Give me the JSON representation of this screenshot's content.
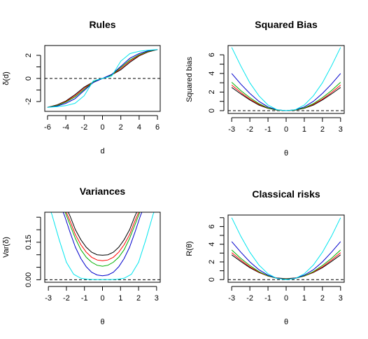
{
  "chart_data": [
    {
      "id": "rules",
      "type": "line",
      "title": "Rules",
      "xlabel": "d",
      "ylabel": "δ(d)",
      "xlim": [
        -6.3,
        6.3
      ],
      "ylim": [
        -2.85,
        2.85
      ],
      "xticks": [
        -6,
        -4,
        -2,
        0,
        2,
        4,
        6
      ],
      "xtick_labels": [
        "-6",
        "-4",
        "-2",
        "0",
        "2",
        "4",
        "6"
      ],
      "yticks": [
        -2,
        0,
        2
      ],
      "ytick_labels": [
        "-2",
        "0",
        "2"
      ],
      "yminor": [
        -1,
        1
      ],
      "hline": 0,
      "series": [
        {
          "color": "#000000",
          "x": [
            -6,
            -5,
            -4,
            -3,
            -2,
            -1,
            0,
            1,
            2,
            3,
            4,
            5,
            6
          ],
          "y": [
            -2.5,
            -2.3,
            -1.95,
            -1.4,
            -0.75,
            -0.3,
            0,
            0.3,
            0.75,
            1.4,
            1.95,
            2.3,
            2.5
          ]
        },
        {
          "color": "#ff0000",
          "x": [
            -6,
            -5,
            -4,
            -3,
            -2,
            -1,
            0,
            1,
            2,
            3,
            4,
            5,
            6
          ],
          "y": [
            -2.5,
            -2.33,
            -2.0,
            -1.5,
            -0.85,
            -0.3,
            0,
            0.3,
            0.85,
            1.5,
            2.0,
            2.33,
            2.5
          ]
        },
        {
          "color": "#00b000",
          "x": [
            -6,
            -5,
            -4,
            -3,
            -2,
            -1,
            0,
            1,
            2,
            3,
            4,
            5,
            6
          ],
          "y": [
            -2.5,
            -2.35,
            -2.05,
            -1.6,
            -0.95,
            -0.3,
            0,
            0.3,
            0.95,
            1.6,
            2.05,
            2.35,
            2.5
          ]
        },
        {
          "color": "#0000cc",
          "x": [
            -6,
            -5,
            -4,
            -3,
            -2,
            -1,
            0,
            1,
            2,
            3,
            4,
            5,
            6
          ],
          "y": [
            -2.5,
            -2.4,
            -2.15,
            -1.75,
            -1.05,
            -0.35,
            0,
            0.35,
            1.05,
            1.75,
            2.15,
            2.4,
            2.5
          ]
        },
        {
          "color": "#00e5ee",
          "x": [
            -6,
            -5,
            -4,
            -3,
            -2,
            -1,
            0,
            1,
            2,
            3,
            4,
            5,
            6
          ],
          "y": [
            -2.5,
            -2.45,
            -2.35,
            -2.15,
            -1.5,
            -0.2,
            0,
            0.2,
            1.5,
            2.15,
            2.35,
            2.45,
            2.5
          ]
        }
      ]
    },
    {
      "id": "squared-bias",
      "type": "line",
      "title": "Squared Bias",
      "xlabel": "θ",
      "ylabel": "Squared bias",
      "xlim": [
        -3.2,
        3.2
      ],
      "ylim": [
        -0.3,
        7.0
      ],
      "xticks": [
        -3,
        -2,
        -1,
        0,
        1,
        2,
        3
      ],
      "xtick_labels": [
        "-3",
        "-2",
        "-1",
        "0",
        "1",
        "2",
        "3"
      ],
      "yticks": [
        0,
        2,
        4,
        6
      ],
      "ytick_labels": [
        "0",
        "2",
        "4",
        "6"
      ],
      "yminor": [
        1,
        3,
        5
      ],
      "hline": 0,
      "series": [
        {
          "color": "#000000",
          "x": [
            -3,
            -2.5,
            -2,
            -1.5,
            -1,
            -0.5,
            0,
            0.5,
            1,
            1.5,
            2,
            2.5,
            3
          ],
          "y": [
            2.5,
            1.8,
            1.15,
            0.6,
            0.25,
            0.05,
            0,
            0.05,
            0.25,
            0.6,
            1.15,
            1.8,
            2.5
          ]
        },
        {
          "color": "#ff0000",
          "x": [
            -3,
            -2.5,
            -2,
            -1.5,
            -1,
            -0.5,
            0,
            0.5,
            1,
            1.5,
            2,
            2.5,
            3
          ],
          "y": [
            2.75,
            1.95,
            1.25,
            0.68,
            0.28,
            0.06,
            0,
            0.06,
            0.28,
            0.68,
            1.25,
            1.95,
            2.75
          ]
        },
        {
          "color": "#00b000",
          "x": [
            -3,
            -2.5,
            -2,
            -1.5,
            -1,
            -0.5,
            0,
            0.5,
            1,
            1.5,
            2,
            2.5,
            3
          ],
          "y": [
            3.05,
            2.15,
            1.4,
            0.75,
            0.3,
            0.07,
            0,
            0.07,
            0.3,
            0.75,
            1.4,
            2.15,
            3.05
          ]
        },
        {
          "color": "#0000cc",
          "x": [
            -3,
            -2.5,
            -2,
            -1.5,
            -1,
            -0.5,
            0,
            0.5,
            1,
            1.5,
            2,
            2.5,
            3
          ],
          "y": [
            4.0,
            2.85,
            1.85,
            1.0,
            0.4,
            0.09,
            0,
            0.09,
            0.4,
            1.0,
            1.85,
            2.85,
            4.0
          ]
        },
        {
          "color": "#00e5ee",
          "x": [
            -3,
            -2.5,
            -2,
            -1.5,
            -1,
            -0.5,
            0,
            0.5,
            1,
            1.5,
            2,
            2.5,
            3
          ],
          "y": [
            6.8,
            4.8,
            3.0,
            1.6,
            0.6,
            0.1,
            0,
            0.1,
            0.6,
            1.6,
            3.0,
            4.8,
            6.8
          ]
        }
      ]
    },
    {
      "id": "variances",
      "type": "line",
      "title": "Variances",
      "xlabel": "θ",
      "ylabel": "Var(δ)",
      "xlim": [
        -3.2,
        3.2
      ],
      "ylim": [
        -0.01,
        0.27
      ],
      "xticks": [
        -3,
        -2,
        -1,
        0,
        1,
        2,
        3
      ],
      "xtick_labels": [
        "-3",
        "-2",
        "-1",
        "0",
        "1",
        "2",
        "3"
      ],
      "yticks": [
        0,
        0.15
      ],
      "ytick_labels": [
        "0.00",
        "0.15"
      ],
      "yminor": [
        0.05,
        0.1,
        0.2,
        0.25
      ],
      "hline": 0,
      "series": [
        {
          "color": "#000000",
          "x": [
            -2.1,
            -1.8,
            -1.5,
            -1.2,
            -0.9,
            -0.6,
            -0.3,
            0,
            0.3,
            0.6,
            0.9,
            1.2,
            1.5,
            1.8,
            2.1
          ],
          "y": [
            0.3,
            0.255,
            0.2,
            0.16,
            0.13,
            0.11,
            0.1,
            0.098,
            0.1,
            0.11,
            0.13,
            0.16,
            0.2,
            0.255,
            0.3
          ]
        },
        {
          "color": "#ff0000",
          "x": [
            -2.1,
            -1.8,
            -1.5,
            -1.2,
            -0.9,
            -0.6,
            -0.3,
            0,
            0.3,
            0.6,
            0.9,
            1.2,
            1.5,
            1.8,
            2.1
          ],
          "y": [
            0.285,
            0.235,
            0.18,
            0.14,
            0.11,
            0.09,
            0.079,
            0.076,
            0.079,
            0.09,
            0.11,
            0.14,
            0.18,
            0.235,
            0.285
          ]
        },
        {
          "color": "#00b000",
          "x": [
            -2.1,
            -1.8,
            -1.5,
            -1.2,
            -0.9,
            -0.6,
            -0.3,
            0,
            0.3,
            0.6,
            0.9,
            1.2,
            1.5,
            1.8,
            2.1
          ],
          "y": [
            0.275,
            0.22,
            0.165,
            0.12,
            0.09,
            0.07,
            0.058,
            0.054,
            0.058,
            0.07,
            0.09,
            0.12,
            0.165,
            0.22,
            0.275
          ]
        },
        {
          "color": "#0000cc",
          "x": [
            -2.4,
            -2.1,
            -1.8,
            -1.5,
            -1.2,
            -0.9,
            -0.6,
            -0.3,
            0,
            0.3,
            0.6,
            0.9,
            1.2,
            1.5,
            1.8,
            2.1,
            2.4
          ],
          "y": [
            0.31,
            0.255,
            0.19,
            0.13,
            0.085,
            0.052,
            0.03,
            0.019,
            0.016,
            0.019,
            0.03,
            0.052,
            0.085,
            0.13,
            0.19,
            0.255,
            0.31
          ]
        },
        {
          "color": "#00e5ee",
          "x": [
            -3.2,
            -2.8,
            -2.4,
            -2.0,
            -1.6,
            -1.2,
            -0.8,
            -0.4,
            0,
            0.4,
            0.8,
            1.2,
            1.6,
            2.0,
            2.4,
            2.8,
            3.2
          ],
          "y": [
            0.34,
            0.26,
            0.16,
            0.07,
            0.022,
            0.006,
            0.002,
            0.001,
            0.001,
            0.001,
            0.002,
            0.006,
            0.022,
            0.07,
            0.16,
            0.26,
            0.34
          ]
        }
      ]
    },
    {
      "id": "classical-risks",
      "type": "line",
      "title": "Classical risks",
      "xlabel": "θ",
      "ylabel": "R(θ)",
      "xlim": [
        -3.2,
        3.2
      ],
      "ylim": [
        -0.3,
        7.3
      ],
      "xticks": [
        -3,
        -2,
        -1,
        0,
        1,
        2,
        3
      ],
      "xtick_labels": [
        "-3",
        "-2",
        "-1",
        "0",
        "1",
        "2",
        "3"
      ],
      "yticks": [
        0,
        2,
        4,
        6
      ],
      "ytick_labels": [
        "0",
        "2",
        "4",
        "6"
      ],
      "yminor": [
        1,
        3,
        5,
        7
      ],
      "hline": 0,
      "series": [
        {
          "color": "#000000",
          "x": [
            -3,
            -2.5,
            -2,
            -1.5,
            -1,
            -0.5,
            0,
            0.5,
            1,
            1.5,
            2,
            2.5,
            3
          ],
          "y": [
            2.8,
            2.05,
            1.35,
            0.8,
            0.4,
            0.18,
            0.1,
            0.18,
            0.4,
            0.8,
            1.35,
            2.05,
            2.8
          ]
        },
        {
          "color": "#ff0000",
          "x": [
            -3,
            -2.5,
            -2,
            -1.5,
            -1,
            -0.5,
            0,
            0.5,
            1,
            1.5,
            2,
            2.5,
            3
          ],
          "y": [
            3.05,
            2.2,
            1.45,
            0.85,
            0.4,
            0.16,
            0.08,
            0.16,
            0.4,
            0.85,
            1.45,
            2.2,
            3.05
          ]
        },
        {
          "color": "#00b000",
          "x": [
            -3,
            -2.5,
            -2,
            -1.5,
            -1,
            -0.5,
            0,
            0.5,
            1,
            1.5,
            2,
            2.5,
            3
          ],
          "y": [
            3.35,
            2.4,
            1.6,
            0.9,
            0.42,
            0.14,
            0.06,
            0.14,
            0.42,
            0.9,
            1.6,
            2.4,
            3.35
          ]
        },
        {
          "color": "#0000cc",
          "x": [
            -3,
            -2.5,
            -2,
            -1.5,
            -1,
            -0.5,
            0,
            0.5,
            1,
            1.5,
            2,
            2.5,
            3
          ],
          "y": [
            4.3,
            3.1,
            2.0,
            1.12,
            0.5,
            0.14,
            0.02,
            0.14,
            0.5,
            1.12,
            2.0,
            3.1,
            4.3
          ]
        },
        {
          "color": "#00e5ee",
          "x": [
            -3,
            -2.5,
            -2,
            -1.5,
            -1,
            -0.5,
            0,
            0.5,
            1,
            1.5,
            2,
            2.5,
            3
          ],
          "y": [
            7.0,
            4.9,
            3.1,
            1.65,
            0.65,
            0.12,
            0.0,
            0.12,
            0.65,
            1.65,
            3.1,
            4.9,
            7.0
          ]
        }
      ]
    }
  ]
}
